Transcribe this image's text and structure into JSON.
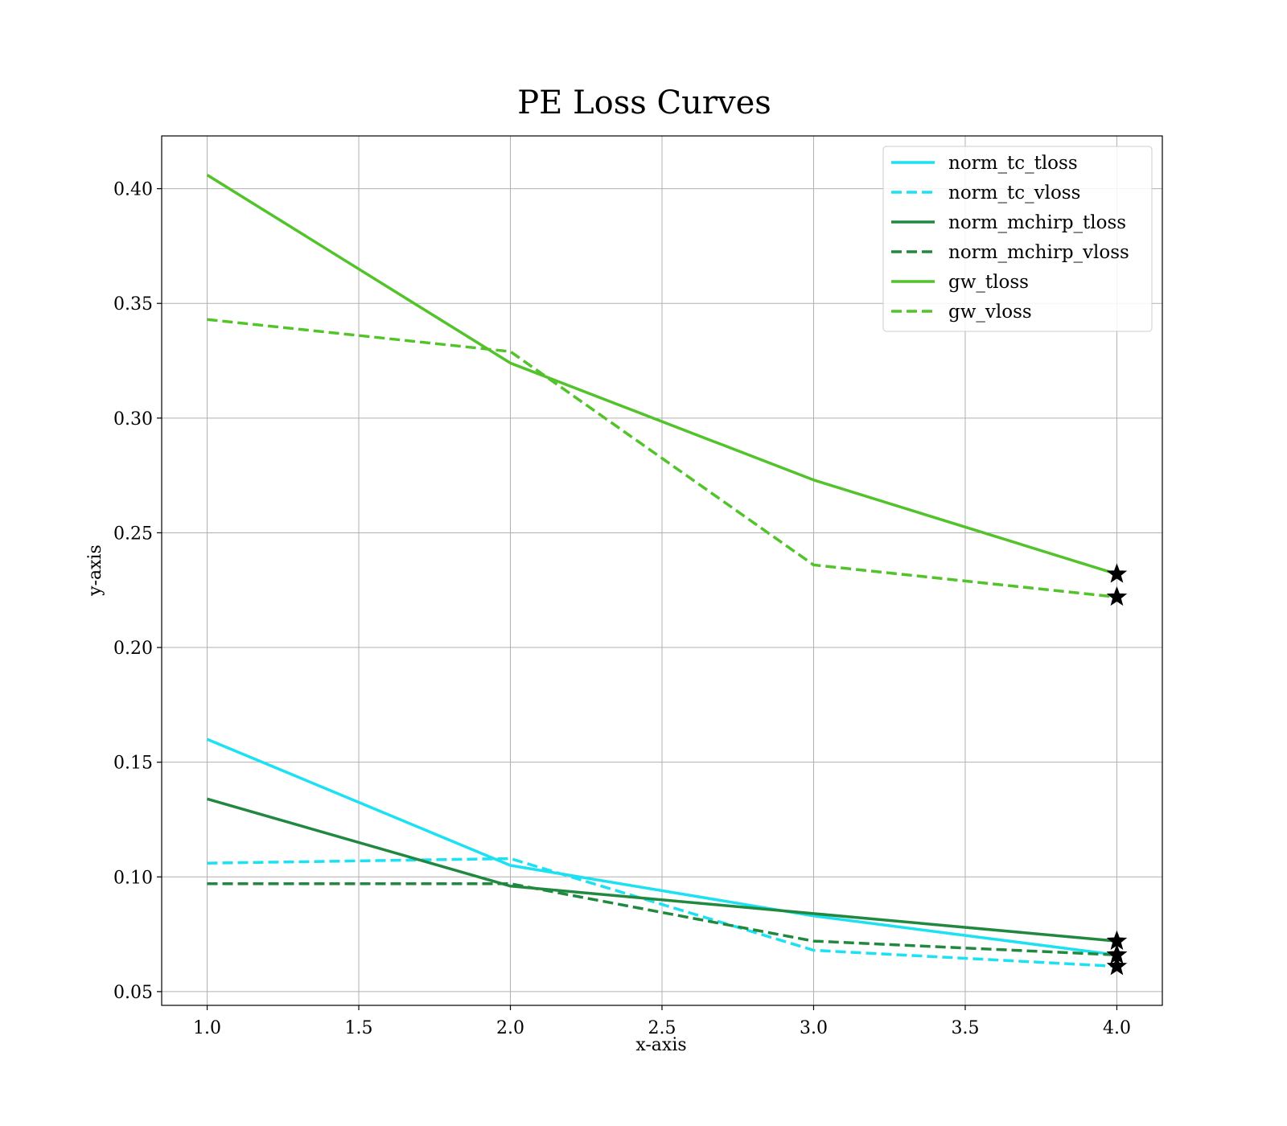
{
  "chart_data": {
    "type": "line",
    "title": "PE Loss Curves",
    "xlabel": "x-axis",
    "ylabel": "y-axis",
    "xlim": [
      0.85,
      4.15
    ],
    "ylim": [
      0.044,
      0.423
    ],
    "xticks": [
      1.0,
      1.5,
      2.0,
      2.5,
      3.0,
      3.5,
      4.0
    ],
    "xtick_labels": [
      "1.0",
      "1.5",
      "2.0",
      "2.5",
      "3.0",
      "3.5",
      "4.0"
    ],
    "yticks": [
      0.05,
      0.1,
      0.15,
      0.2,
      0.25,
      0.3,
      0.35,
      0.4
    ],
    "ytick_labels": [
      "0.05",
      "0.10",
      "0.15",
      "0.20",
      "0.25",
      "0.30",
      "0.35",
      "0.40"
    ],
    "grid": true,
    "legend_position": "top-right",
    "x": [
      1,
      2,
      3,
      4
    ],
    "series": [
      {
        "name": "norm_tc_tloss",
        "values": [
          0.16,
          0.105,
          0.083,
          0.066
        ],
        "color": "#1ce1f2",
        "dash": "solid",
        "end_marker": "star"
      },
      {
        "name": "norm_tc_vloss",
        "values": [
          0.106,
          0.108,
          0.068,
          0.061
        ],
        "color": "#1ce1f2",
        "dash": "dashed",
        "end_marker": "star"
      },
      {
        "name": "norm_mchirp_tloss",
        "values": [
          0.134,
          0.096,
          0.084,
          0.072
        ],
        "color": "#21893f",
        "dash": "solid",
        "end_marker": "star"
      },
      {
        "name": "norm_mchirp_vloss",
        "values": [
          0.097,
          0.097,
          0.072,
          0.066
        ],
        "color": "#21893f",
        "dash": "dashed",
        "end_marker": "star"
      },
      {
        "name": "gw_tloss",
        "values": [
          0.406,
          0.324,
          0.273,
          0.232
        ],
        "color": "#52c32a",
        "dash": "solid",
        "end_marker": "star"
      },
      {
        "name": "gw_vloss",
        "values": [
          0.343,
          0.329,
          0.236,
          0.222
        ],
        "color": "#52c32a",
        "dash": "dashed",
        "end_marker": "star"
      }
    ]
  }
}
